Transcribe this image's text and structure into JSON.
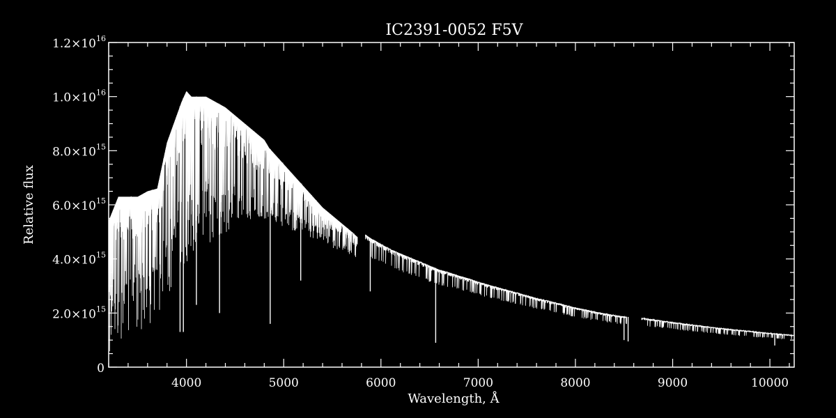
{
  "chart_data": {
    "type": "line",
    "title": "IC2391-0052  F5V",
    "xlabel": "Wavelength, Å",
    "ylabel": "Relative flux",
    "xlim": [
      3200,
      10250
    ],
    "ylim": [
      0,
      1.2e+16
    ],
    "x_ticks": [
      4000,
      5000,
      6000,
      7000,
      8000,
      9000,
      10000
    ],
    "x_tick_labels": [
      "4000",
      "5000",
      "6000",
      "7000",
      "8000",
      "9000",
      "10000"
    ],
    "y_ticks": [
      {
        "value": 0,
        "mantissa": "0",
        "exponent": ""
      },
      {
        "value": 2000000000000000.0,
        "mantissa": "2.0×10",
        "exponent": "15"
      },
      {
        "value": 4000000000000000.0,
        "mantissa": "4.0×10",
        "exponent": "15"
      },
      {
        "value": 6000000000000000.0,
        "mantissa": "6.0×10",
        "exponent": "15"
      },
      {
        "value": 8000000000000000.0,
        "mantissa": "8.0×10",
        "exponent": "15"
      },
      {
        "value": 1e+16,
        "mantissa": "1.0×10",
        "exponent": "16"
      },
      {
        "value": 1.2e+16,
        "mantissa": "1.2×10",
        "exponent": "16"
      }
    ],
    "grid": false,
    "colors": {
      "background": "#000000",
      "foreground": "#ffffff",
      "series": "#ffffff"
    },
    "series": [
      {
        "x": [
          3200,
          3300,
          3400,
          3500,
          3600,
          3700,
          3800,
          3850,
          3900,
          3950,
          4000,
          4050,
          4100,
          4200,
          4300,
          4400,
          4500,
          4600,
          4700,
          4800,
          4850,
          4900,
          5000,
          5100,
          5200,
          5300,
          5400,
          5500,
          5600,
          5700,
          5760,
          5840,
          5900,
          6000,
          6100,
          6200,
          6300,
          6400,
          6500,
          6600,
          6700,
          6800,
          6900,
          7000,
          7200,
          7400,
          7600,
          7800,
          8000,
          8200,
          8400,
          8530,
          8680,
          8800,
          9000,
          9200,
          9400,
          9600,
          9800,
          10000,
          10250
        ],
        "y": [
          5400000000000000.0,
          6300000000000000.0,
          6300000000000000.0,
          6300000000000000.0,
          6500000000000000.0,
          6600000000000000.0,
          8300000000000000.0,
          8800000000000000.0,
          9300000000000000.0,
          9800000000000000.0,
          1.02e+16,
          1e+16,
          1e+16,
          1e+16,
          9800000000000000.0,
          9600000000000000.0,
          9300000000000000.0,
          9000000000000000.0,
          8700000000000000.0,
          8400000000000000.0,
          8100000000000000.0,
          7900000000000000.0,
          7500000000000000.0,
          7100000000000000.0,
          6700000000000000.0,
          6300000000000000.0,
          5900000000000000.0,
          5600000000000000.0,
          5300000000000000.0,
          5000000000000000.0,
          4800000000000000.0,
          4900000000000000.0,
          4750000000000000.0,
          4550000000000000.0,
          4350000000000000.0,
          4200000000000000.0,
          4050000000000000.0,
          3900000000000000.0,
          3750000000000000.0,
          3600000000000000.0,
          3500000000000000.0,
          3380000000000000.0,
          3280000000000000.0,
          3150000000000000.0,
          2950000000000000.0,
          2750000000000000.0,
          2550000000000000.0,
          2380000000000000.0,
          2200000000000000.0,
          2050000000000000.0,
          1920000000000000.0,
          1860000000000000.0,
          1820000000000000.0,
          1760000000000000.0,
          1660000000000000.0,
          1570000000000000.0,
          1480000000000000.0,
          1400000000000000.0,
          1330000000000000.0,
          1260000000000000.0,
          1180000000000000.0
        ]
      }
    ],
    "absorption_lines": [
      {
        "x": 3934,
        "y": 1300000000000000.0
      },
      {
        "x": 3968,
        "y": 1300000000000000.0
      },
      {
        "x": 4102,
        "y": 2300000000000000.0
      },
      {
        "x": 4340,
        "y": 2000000000000000.0
      },
      {
        "x": 4861,
        "y": 1600000000000000.0
      },
      {
        "x": 5175,
        "y": 3200000000000000.0
      },
      {
        "x": 5890,
        "y": 2800000000000000.0
      },
      {
        "x": 6563,
        "y": 900000000000000.0
      },
      {
        "x": 8500,
        "y": 1000000000000000.0
      },
      {
        "x": 8542,
        "y": 950000000000000.0
      },
      {
        "x": 10050,
        "y": 800000000000000.0
      }
    ],
    "gaps": [
      [
        5760,
        5840
      ],
      [
        8530,
        8680
      ]
    ]
  }
}
